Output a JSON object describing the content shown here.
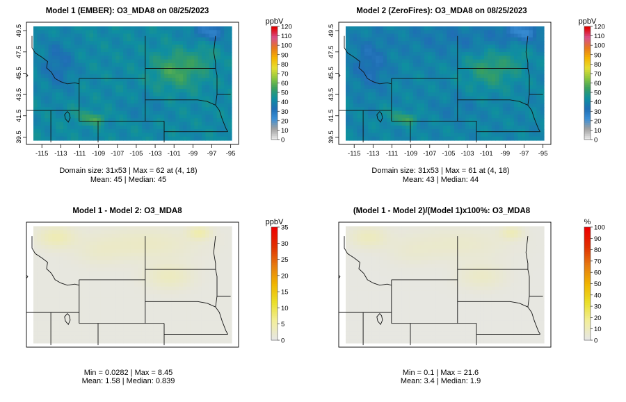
{
  "colors": {
    "conc_scale": [
      "#e6e6e6",
      "#a0a0a0",
      "#3a8fd6",
      "#1f6eb4",
      "#0f8fa0",
      "#39a060",
      "#8cc63e",
      "#e6df32",
      "#f5b400",
      "#e6781e",
      "#d8508c",
      "#e00000"
    ],
    "diff_scale": [
      "#e6e6e6",
      "#f2ee9a",
      "#eadf28",
      "#f0b400",
      "#e67a10",
      "#e03000",
      "#ee0000"
    ]
  },
  "chart_data": [
    {
      "type": "heatmap",
      "title": "Model 1 (EMBER): O3_MDA8 on 08/25/2023",
      "legend_title": "ppbV",
      "legend_ticks": [
        "0",
        "10",
        "20",
        "30",
        "40",
        "50",
        "60",
        "70",
        "80",
        "90",
        "100",
        "110",
        "120"
      ],
      "xlim": [
        -115,
        -95
      ],
      "ylim": [
        39.5,
        49.5
      ],
      "x_ticks": [
        "-115",
        "-113",
        "-111",
        "-109",
        "-107",
        "-105",
        "-103",
        "-101",
        "-99",
        "-97",
        "-95"
      ],
      "y_ticks": [
        "39.5",
        "41.5",
        "43.5",
        "45.5",
        "47.5",
        "49.5"
      ],
      "domain_size": "31x53",
      "max": 62,
      "max_location": "(4, 18)",
      "mean": 45,
      "median": 45,
      "stats_line1": "Domain size: 31x53 | Max = 62 at (4, 18)",
      "stats_line2": "Mean: 45 |  Median: 45"
    },
    {
      "type": "heatmap",
      "title": "Model 2 (ZeroFires): O3_MDA8 on 08/25/2023",
      "legend_title": "ppbV",
      "legend_ticks": [
        "0",
        "10",
        "20",
        "30",
        "40",
        "50",
        "60",
        "70",
        "80",
        "90",
        "100",
        "110",
        "120"
      ],
      "xlim": [
        -115,
        -95
      ],
      "ylim": [
        39.5,
        49.5
      ],
      "x_ticks": [
        "-115",
        "-113",
        "-111",
        "-109",
        "-107",
        "-105",
        "-103",
        "-101",
        "-99",
        "-97",
        "-95"
      ],
      "y_ticks": [
        "39.5",
        "41.5",
        "43.5",
        "45.5",
        "47.5",
        "49.5"
      ],
      "domain_size": "31x53",
      "max": 61,
      "max_location": "(4, 18)",
      "mean": 43,
      "median": 44,
      "stats_line1": "Domain size: 31x53 | Max = 61 at (4, 18)",
      "stats_line2": "Mean: 43 |  Median: 44"
    },
    {
      "type": "heatmap",
      "title": "Model 1 - Model 2: O3_MDA8",
      "legend_title": "ppbV",
      "legend_ticks": [
        "0",
        "5",
        "10",
        "15",
        "20",
        "25",
        "30",
        "35"
      ],
      "min": 0.0282,
      "max": 8.45,
      "mean": 1.58,
      "median": 0.839,
      "stats_line1": "Min = 0.0282 | Max = 8.45",
      "stats_line2": "Mean: 1.58 |  Median: 0.839"
    },
    {
      "type": "heatmap",
      "title": "(Model 1 - Model 2)/(Model 1)x100%: O3_MDA8",
      "legend_title": "%",
      "legend_ticks": [
        "0",
        "10",
        "20",
        "30",
        "40",
        "50",
        "60",
        "70",
        "80",
        "90",
        "100"
      ],
      "min": 0.1,
      "max": 21.6,
      "mean": 3.4,
      "median": 1.9,
      "stats_line1": "Min = 0.1 | Max = 21.6",
      "stats_line2": "Mean: 3.4 |  Median: 1.9"
    }
  ]
}
